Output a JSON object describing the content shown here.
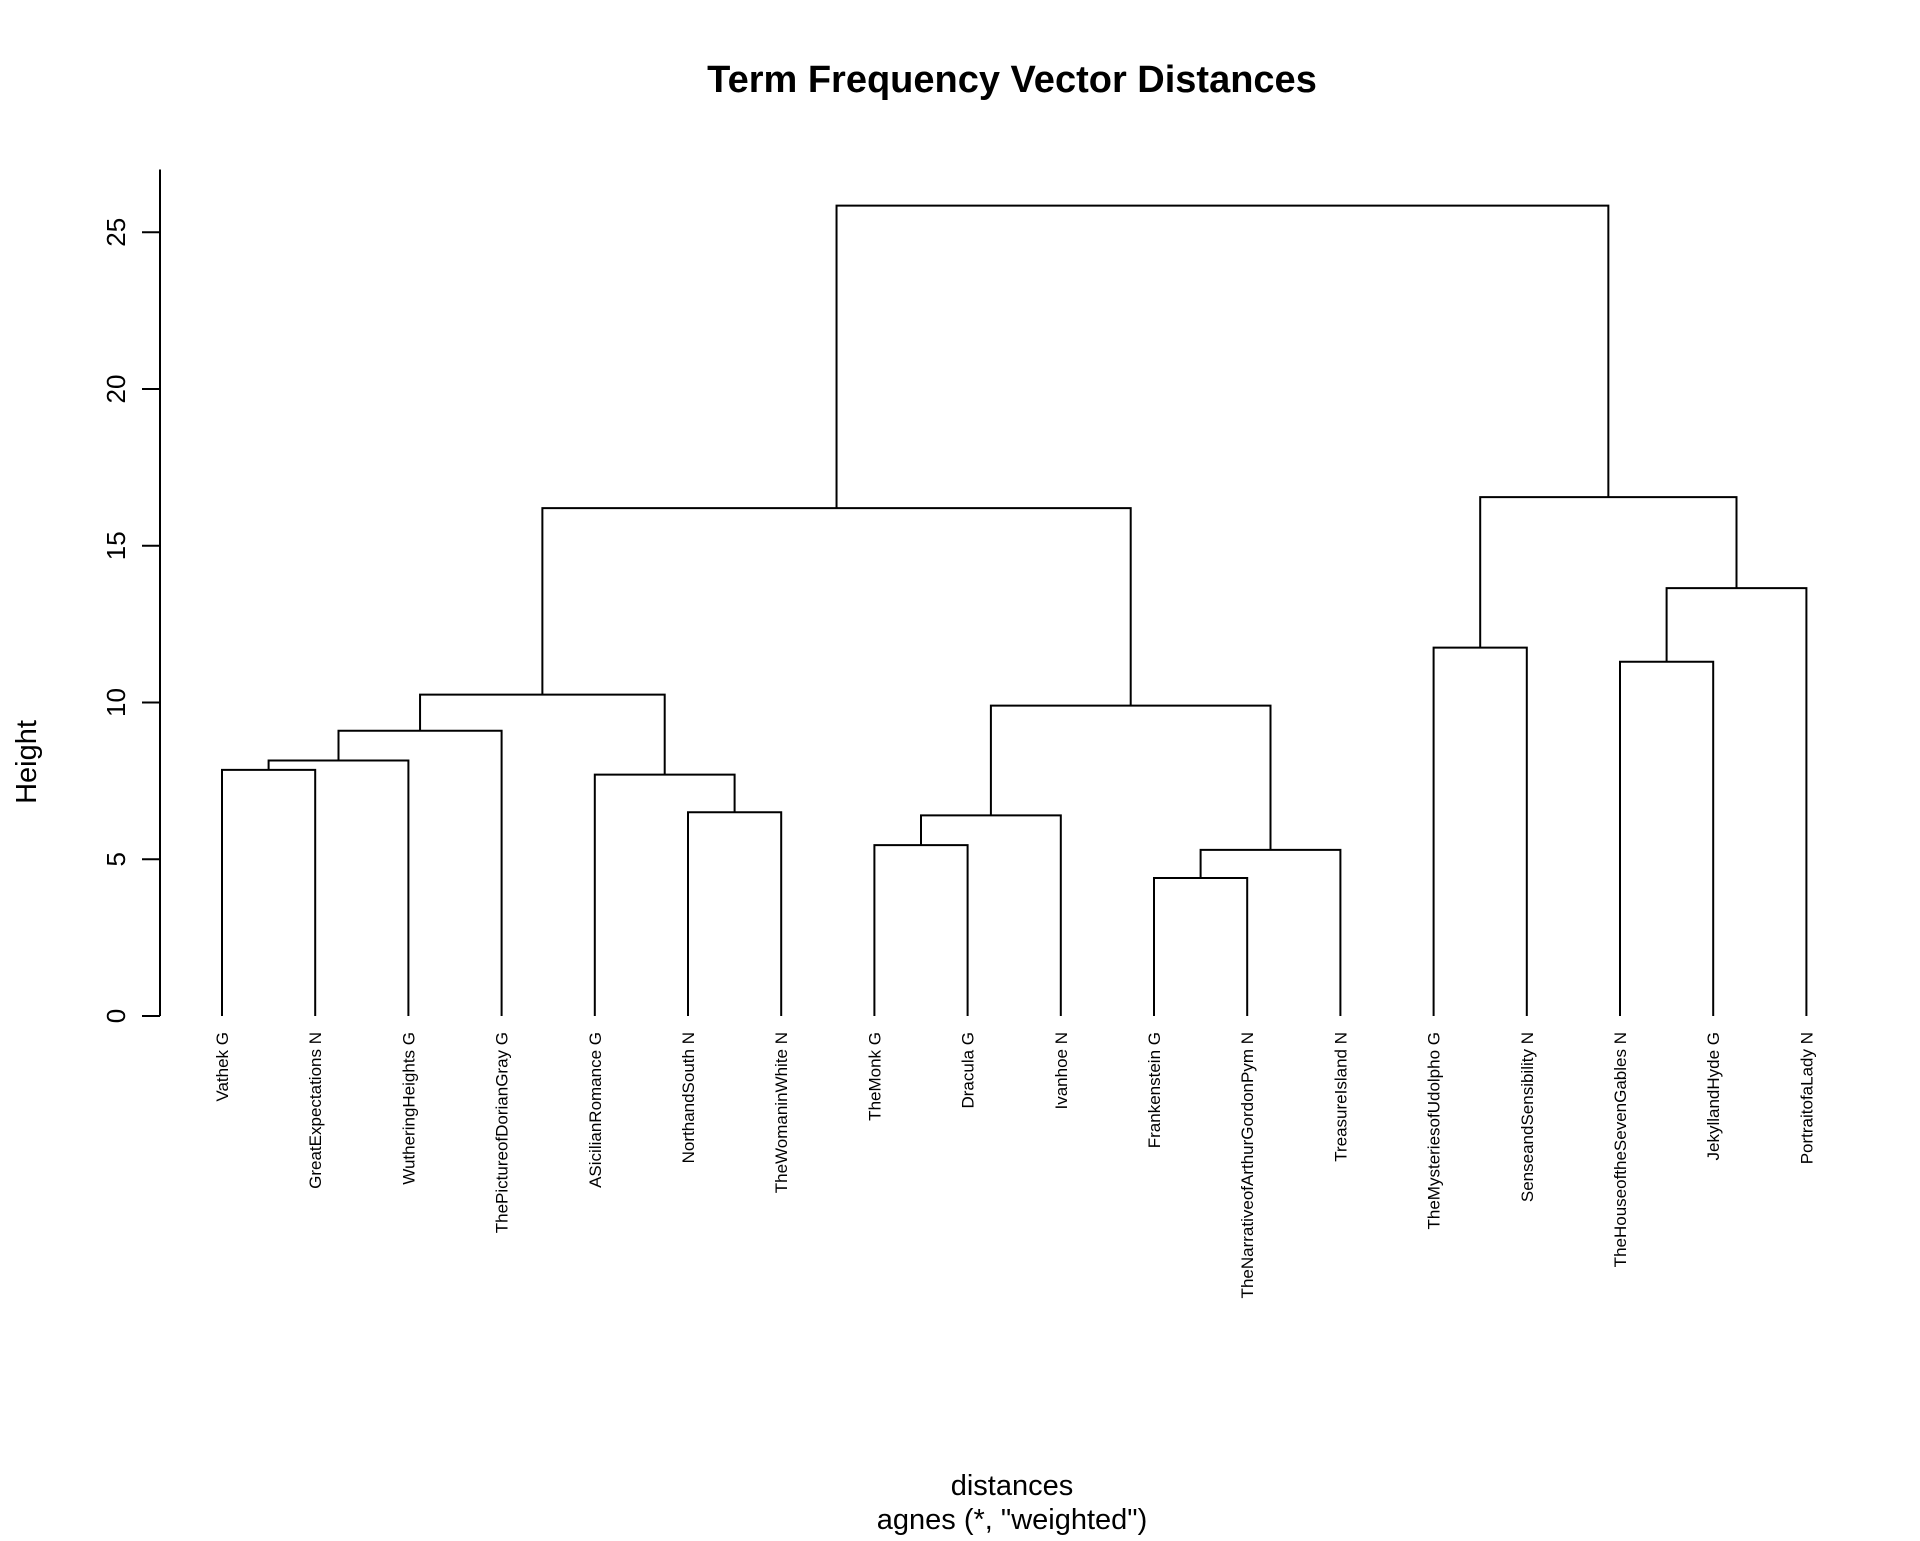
{
  "chart_data": {
    "type": "dendrogram",
    "title": "Term Frequency Vector Distances",
    "ylabel": "Height",
    "xlabel": "distances",
    "sublabel": "agnes (*, \"weighted\")",
    "ylim": [
      0,
      27
    ],
    "yticks": [
      0,
      5,
      10,
      15,
      20,
      25
    ],
    "leaves": [
      "Vathek G",
      "GreatExpectations N",
      "WutheringHeights G",
      "ThePictureofDorianGray G",
      "ASicilianRomance G",
      "NorthandSouth N",
      "TheWomaninWhite N",
      "TheMonk G",
      "Dracula G",
      "Ivanhoe N",
      "Frankenstein G",
      "TheNarrativeofArthurGordonPym N",
      "TreasureIsland N",
      "TheMysteriesofUdolpho G",
      "SenseandSensibility N",
      "TheHouseoftheSevenGables N",
      "JekyllandHyde G",
      "PortraitofaLady N"
    ],
    "merges": [
      {
        "id": "m1",
        "left": "L0",
        "right": "L1",
        "height": 7.85
      },
      {
        "id": "m2",
        "left": "m1",
        "right": "L2",
        "height": 8.15
      },
      {
        "id": "m3",
        "left": "m2",
        "right": "L3",
        "height": 9.1
      },
      {
        "id": "m4",
        "left": "L5",
        "right": "L6",
        "height": 6.5
      },
      {
        "id": "m5",
        "left": "L4",
        "right": "m4",
        "height": 7.7
      },
      {
        "id": "m6",
        "left": "m3",
        "right": "m5",
        "height": 10.25
      },
      {
        "id": "m7",
        "left": "L7",
        "right": "L8",
        "height": 5.45
      },
      {
        "id": "m8",
        "left": "m7",
        "right": "L9",
        "height": 6.4
      },
      {
        "id": "m9",
        "left": "L10",
        "right": "L11",
        "height": 4.4
      },
      {
        "id": "m10",
        "left": "m9",
        "right": "L12",
        "height": 5.3
      },
      {
        "id": "m11",
        "left": "m8",
        "right": "m10",
        "height": 9.9
      },
      {
        "id": "m12",
        "left": "m6",
        "right": "m11",
        "height": 16.2
      },
      {
        "id": "m13",
        "left": "L13",
        "right": "L14",
        "height": 11.75
      },
      {
        "id": "m14",
        "left": "L15",
        "right": "L16",
        "height": 11.3
      },
      {
        "id": "m15",
        "left": "m14",
        "right": "L17",
        "height": 13.65
      },
      {
        "id": "m16",
        "left": "m13",
        "right": "m15",
        "height": 16.55
      },
      {
        "id": "m17",
        "left": "m12",
        "right": "m16",
        "height": 25.85
      }
    ]
  }
}
